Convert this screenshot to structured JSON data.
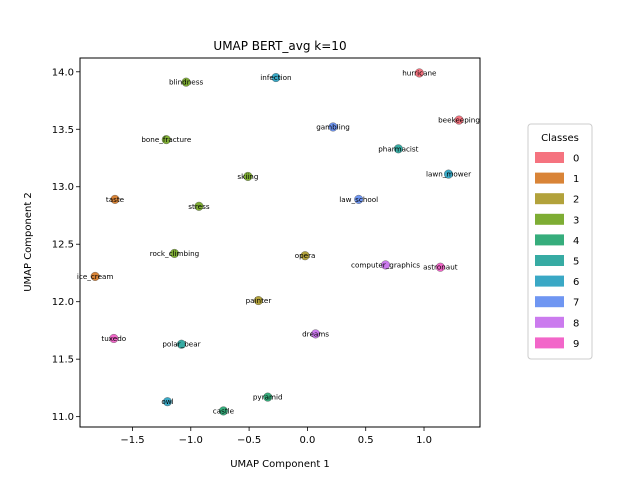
{
  "chart_data": {
    "type": "scatter",
    "title": "UMAP BERT_avg k=10",
    "xlabel": "UMAP Component 1",
    "ylabel": "UMAP Component 2",
    "xlim": [
      -1.95,
      1.48
    ],
    "ylim": [
      10.91,
      14.12
    ],
    "xticks": [
      -1.5,
      -1.0,
      -0.5,
      0.0,
      0.5,
      1.0
    ],
    "xtick_labels": [
      "−1.5",
      "−1.0",
      "−0.5",
      "0.0",
      "0.5",
      "1.0"
    ],
    "yticks": [
      11.0,
      11.5,
      12.0,
      12.5,
      13.0,
      13.5,
      14.0
    ],
    "ytick_labels": [
      "11.0",
      "11.5",
      "12.0",
      "12.5",
      "13.0",
      "13.5",
      "14.0"
    ],
    "grid": false,
    "legend": {
      "title": "Classes",
      "placement": "right",
      "entries": [
        "0",
        "1",
        "2",
        "3",
        "4",
        "5",
        "6",
        "7",
        "8",
        "9"
      ],
      "colors": [
        "#f5737f",
        "#d98437",
        "#b2a23b",
        "#7ead34",
        "#36ad7c",
        "#37aba3",
        "#3aa8c5",
        "#6f96f2",
        "#cb7bee",
        "#f266c9"
      ]
    },
    "points": [
      {
        "label": "hurricane",
        "x": 0.96,
        "y": 13.99,
        "cls": 0
      },
      {
        "label": "beekeeping",
        "x": 1.3,
        "y": 13.58,
        "cls": 0
      },
      {
        "label": "taste",
        "x": -1.65,
        "y": 12.89,
        "cls": 1
      },
      {
        "label": "ice_cream",
        "x": -1.82,
        "y": 12.22,
        "cls": 1
      },
      {
        "label": "opera",
        "x": -0.02,
        "y": 12.4,
        "cls": 2
      },
      {
        "label": "painter",
        "x": -0.42,
        "y": 12.01,
        "cls": 2
      },
      {
        "label": "blindness",
        "x": -1.04,
        "y": 13.91,
        "cls": 3
      },
      {
        "label": "bone_fracture",
        "x": -1.21,
        "y": 13.41,
        "cls": 3
      },
      {
        "label": "skiing",
        "x": -0.51,
        "y": 13.09,
        "cls": 3
      },
      {
        "label": "stress",
        "x": -0.93,
        "y": 12.83,
        "cls": 3
      },
      {
        "label": "rock_climbing",
        "x": -1.14,
        "y": 12.42,
        "cls": 3
      },
      {
        "label": "pyramid",
        "x": -0.34,
        "y": 11.17,
        "cls": 4
      },
      {
        "label": "castle",
        "x": -0.72,
        "y": 11.05,
        "cls": 4
      },
      {
        "label": "pharmacist",
        "x": 0.78,
        "y": 13.33,
        "cls": 5
      },
      {
        "label": "polar_bear",
        "x": -1.08,
        "y": 11.63,
        "cls": 5
      },
      {
        "label": "infection",
        "x": -0.27,
        "y": 13.95,
        "cls": 6
      },
      {
        "label": "lawn_mower",
        "x": 1.21,
        "y": 13.11,
        "cls": 6
      },
      {
        "label": "owl",
        "x": -1.2,
        "y": 11.13,
        "cls": 6
      },
      {
        "label": "gambling",
        "x": 0.22,
        "y": 13.52,
        "cls": 7
      },
      {
        "label": "law_school",
        "x": 0.44,
        "y": 12.89,
        "cls": 7
      },
      {
        "label": "computer_graphics",
        "x": 0.67,
        "y": 12.32,
        "cls": 8
      },
      {
        "label": "dreams",
        "x": 0.07,
        "y": 11.72,
        "cls": 8
      },
      {
        "label": "astronaut",
        "x": 1.14,
        "y": 12.3,
        "cls": 9
      },
      {
        "label": "tuxedo",
        "x": -1.66,
        "y": 11.68,
        "cls": 9
      }
    ]
  }
}
